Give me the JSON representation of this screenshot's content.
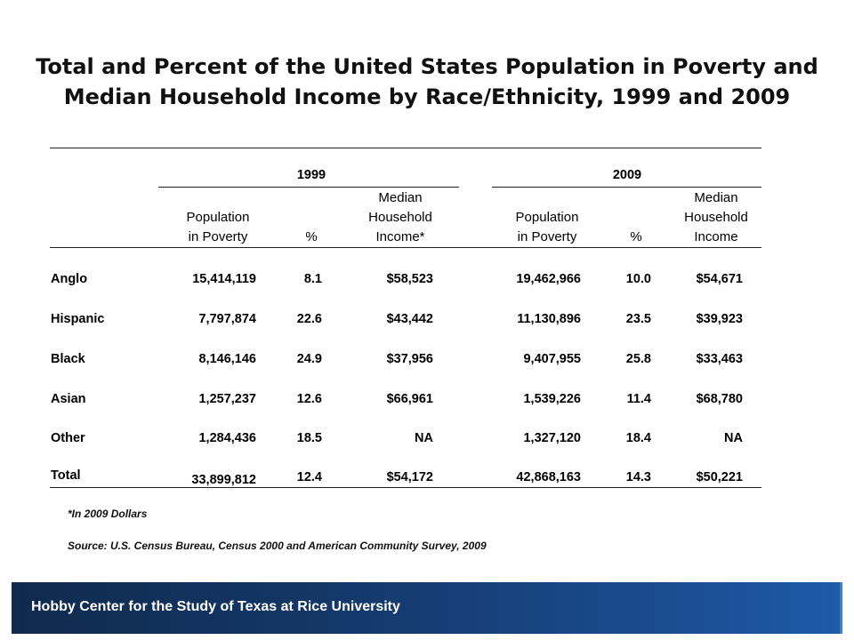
{
  "title_line1": "Total and Percent of the United States Population in Poverty and",
  "title_line2": "Median Household Income by Race/Ethnicity, 1999 and 2009",
  "year_1999": "1999",
  "year_2009": "2009",
  "headers_1999": {
    "pop_line1": "Population",
    "pop_line2": "in Poverty",
    "pct": "%",
    "income_line1": "Median",
    "income_line2": "Household",
    "income_line3": "Income*"
  },
  "headers_2009": {
    "pop_line1": "Population",
    "pop_line2": "in Poverty",
    "pct": "%",
    "income_line1": "Median",
    "income_line2": "Household",
    "income_line3": "Income"
  },
  "rows": [
    {
      "label": "Anglo",
      "pop1999": "15,414,119",
      "pct1999": "8.1",
      "inc1999": "$58,523",
      "pop2009": "19,462,966",
      "pct2009": "10.0",
      "inc2009": "$54,671"
    },
    {
      "label": "Hispanic",
      "pop1999": "7,797,874",
      "pct1999": "22.6",
      "inc1999": "$43,442",
      "pop2009": "11,130,896",
      "pct2009": "23.5",
      "inc2009": "$39,923"
    },
    {
      "label": "Black",
      "pop1999": "8,146,146",
      "pct1999": "24.9",
      "inc1999": "$37,956",
      "pop2009": "9,407,955",
      "pct2009": "25.8",
      "inc2009": "$33,463"
    },
    {
      "label": "Asian",
      "pop1999": "1,257,237",
      "pct1999": "12.6",
      "inc1999": "$66,961",
      "pop2009": "1,539,226",
      "pct2009": "11.4",
      "inc2009": "$68,780"
    },
    {
      "label": "Other",
      "pop1999": "1,284,436",
      "pct1999": "18.5",
      "inc1999": "NA",
      "pop2009": "1,327,120",
      "pct2009": "18.4",
      "inc2009": "NA"
    },
    {
      "label": "Total",
      "pop1999": "33,899,812",
      "pct1999": "12.4",
      "inc1999": "$54,172",
      "pop2009": "42,868,163",
      "pct2009": "14.3",
      "inc2009": "$50,221"
    }
  ],
  "footnote": "*In 2009 Dollars",
  "source": "Source: U.S. Census Bureau, Census 2000 and American Community Survey, 2009",
  "footer": "Hobby Center for the Study of Texas at Rice University"
}
